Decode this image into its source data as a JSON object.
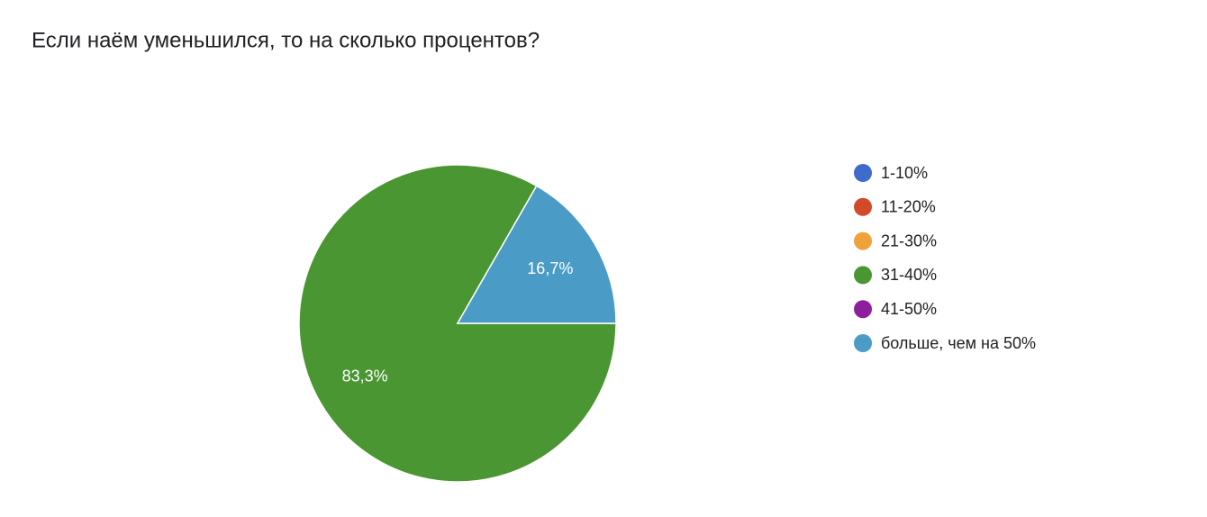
{
  "chart_data": {
    "type": "pie",
    "title": "Если наём уменьшился, то на сколько процентов?",
    "categories": [
      "1-10%",
      "11-20%",
      "21-30%",
      "31-40%",
      "41-50%",
      "больше, чем на 50%"
    ],
    "values": [
      0,
      0,
      0,
      83.3,
      0,
      16.7
    ],
    "value_labels": [
      null,
      null,
      null,
      "83,3%",
      null,
      "16,7%"
    ],
    "colors": [
      "#3f6bcc",
      "#d14a2a",
      "#f0a23a",
      "#4a9632",
      "#8e1f9c",
      "#4a9bc6"
    ],
    "legend": "right"
  }
}
